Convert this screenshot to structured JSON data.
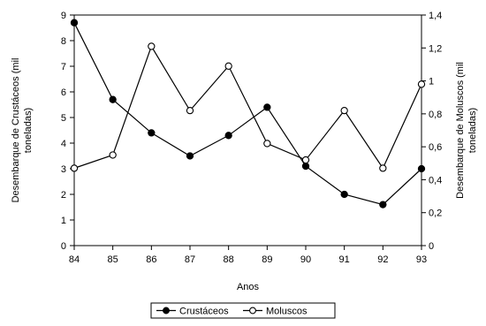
{
  "chart_data": {
    "type": "line",
    "x": [
      "84",
      "85",
      "86",
      "87",
      "88",
      "89",
      "90",
      "91",
      "92",
      "93"
    ],
    "xlabel": "Anos",
    "y_left": {
      "label_lines": [
        "Desembarque de Crustáceos (mil",
        "toneladas)"
      ],
      "lim": [
        0,
        9
      ],
      "ticks": [
        "0",
        "1",
        "2",
        "3",
        "4",
        "5",
        "6",
        "7",
        "8",
        "9"
      ]
    },
    "y_right": {
      "label_lines": [
        "Desembarque de Moluscos (mil",
        "toneladas)"
      ],
      "lim": [
        0,
        1.4
      ],
      "ticks": [
        "0",
        "0,2",
        "0,4",
        "0,6",
        "0,8",
        "1",
        "1,2",
        "1,4"
      ]
    },
    "series": [
      {
        "name": "Crustáceos",
        "axis": "left",
        "marker": "filled-circle",
        "values": [
          8.7,
          5.7,
          4.4,
          3.5,
          4.3,
          5.4,
          3.1,
          2.0,
          1.6,
          3.0
        ]
      },
      {
        "name": "Moluscos",
        "axis": "right",
        "marker": "open-circle",
        "values": [
          0.47,
          0.55,
          1.21,
          0.82,
          1.09,
          0.62,
          0.52,
          0.82,
          0.47,
          0.98
        ]
      }
    ],
    "legend_position": "bottom-center",
    "grid": false
  }
}
